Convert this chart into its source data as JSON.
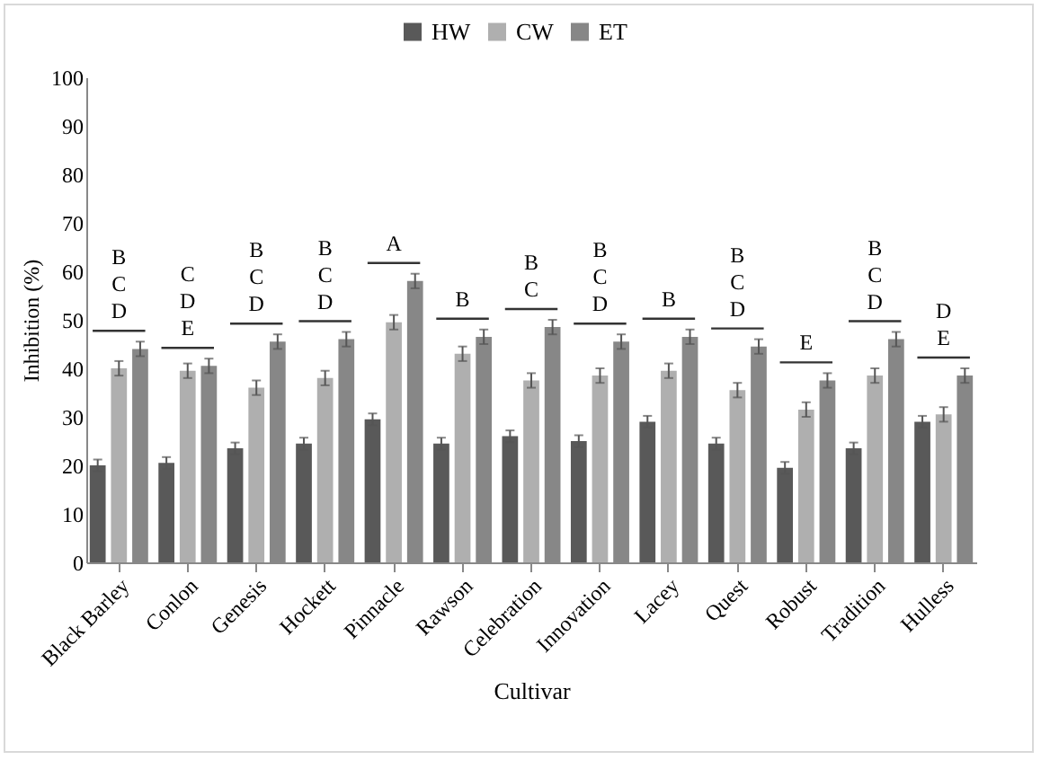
{
  "chart_data": {
    "type": "bar",
    "xlabel": "Cultivar",
    "ylabel": "Inhibition (%)",
    "categories": [
      "Black Barley",
      "Conlon",
      "Genesis",
      "Hockett",
      "Pinnacle",
      "Rawson",
      "Celebration",
      "Innovation",
      "Lacey",
      "Quest",
      "Robust",
      "Tradition",
      "Hulless"
    ],
    "series": [
      {
        "name": "HW",
        "color": "#595959",
        "values": [
          20,
          20.5,
          23.5,
          24.5,
          29.5,
          24.5,
          26,
          25,
          29,
          24.5,
          19.5,
          23.5,
          29
        ],
        "errors": [
          1.2,
          1.2,
          1.2,
          1.2,
          1.2,
          1.2,
          1.2,
          1.2,
          1.2,
          1.2,
          1.2,
          1.2,
          1.2
        ]
      },
      {
        "name": "CW",
        "color": "#afafaf",
        "values": [
          40,
          39.5,
          36,
          38,
          49.5,
          43,
          37.5,
          38.5,
          39.5,
          35.5,
          31.5,
          38.5,
          30.5
        ],
        "errors": [
          1.5,
          1.5,
          1.5,
          1.5,
          1.5,
          1.5,
          1.5,
          1.5,
          1.5,
          1.5,
          1.5,
          1.5,
          1.5
        ]
      },
      {
        "name": "ET",
        "color": "#878787",
        "values": [
          44,
          40.5,
          45.5,
          46,
          58,
          46.5,
          48.5,
          45.5,
          46.5,
          44.5,
          37.5,
          46,
          38.5
        ],
        "errors": [
          1.5,
          1.5,
          1.5,
          1.5,
          1.5,
          1.5,
          1.5,
          1.5,
          1.5,
          1.5,
          1.5,
          1.5,
          1.5
        ]
      }
    ],
    "ylim": [
      0,
      100
    ],
    "yticks": [
      0,
      10,
      20,
      30,
      40,
      50,
      60,
      70,
      80,
      90,
      100
    ],
    "grid": false,
    "legend": "top",
    "annotations": [
      "B C D",
      "C D E",
      "B C D",
      "B C D",
      "A",
      "B",
      "B C",
      "B C D",
      "B",
      "B C D",
      "E",
      "B C D",
      "D E"
    ]
  }
}
